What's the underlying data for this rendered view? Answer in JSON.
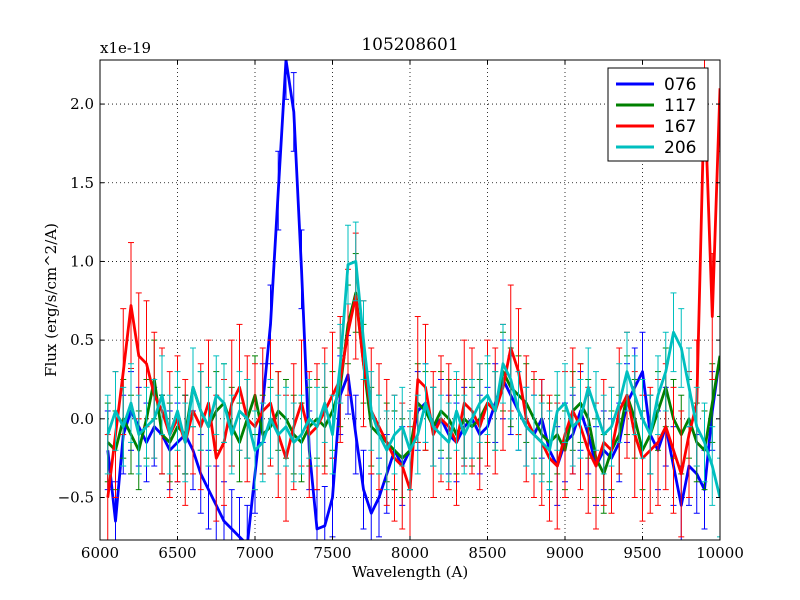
{
  "chart_data": {
    "type": "line",
    "title": "105208601",
    "xlabel": "Wavelength (A)",
    "ylabel": "Flux (erg/s/cm^2/A)",
    "offset_label": "x1e-19",
    "xlim": [
      6000,
      10000
    ],
    "ylim": [
      -0.77,
      2.28
    ],
    "grid": true,
    "legend_position": "top-right",
    "x_ticks": [
      6000,
      6500,
      7000,
      7500,
      8000,
      8500,
      9000,
      9500,
      10000
    ],
    "x_tick_labels": [
      "6000",
      "6500",
      "7000",
      "7500",
      "8000",
      "8500",
      "9000",
      "9500",
      "10000"
    ],
    "y_ticks": [
      -0.5,
      0.0,
      0.5,
      1.0,
      1.5,
      2.0
    ],
    "y_tick_labels": [
      "−0.5",
      "0.0",
      "0.5",
      "1.0",
      "1.5",
      "2.0"
    ],
    "series": [
      {
        "name": "076",
        "color": "#0000ff",
        "x": [
          6050,
          6100,
          6150,
          6200,
          6250,
          6300,
          6350,
          6400,
          6450,
          6500,
          6550,
          6600,
          6650,
          6700,
          6750,
          6800,
          6850,
          6900,
          6950,
          7000,
          7050,
          7100,
          7150,
          7200,
          7250,
          7300,
          7350,
          7400,
          7450,
          7500,
          7550,
          7600,
          7650,
          7700,
          7750,
          7800,
          7850,
          7900,
          7950,
          8000,
          8050,
          8100,
          8150,
          8200,
          8250,
          8300,
          8350,
          8400,
          8450,
          8500,
          8550,
          8600,
          8650,
          8700,
          8750,
          8800,
          8850,
          8900,
          8950,
          9000,
          9050,
          9100,
          9150,
          9200,
          9250,
          9300,
          9350,
          9400,
          9450,
          9500,
          9550,
          9600,
          9650,
          9700,
          9750,
          9800,
          9850,
          9900,
          9950,
          10000
        ],
        "values": [
          -0.2,
          -0.65,
          -0.1,
          0.05,
          -0.05,
          -0.15,
          -0.05,
          -0.1,
          -0.2,
          -0.15,
          -0.1,
          -0.2,
          -0.35,
          -0.45,
          -0.55,
          -0.65,
          -0.7,
          -0.75,
          -0.8,
          -0.35,
          0.1,
          0.6,
          1.45,
          2.28,
          1.95,
          0.95,
          -0.2,
          -0.7,
          -0.68,
          -0.5,
          0.15,
          0.28,
          -0.1,
          -0.45,
          -0.6,
          -0.5,
          -0.35,
          -0.2,
          -0.3,
          -0.2,
          0.05,
          0.1,
          -0.05,
          0.0,
          -0.1,
          -0.15,
          -0.05,
          0.0,
          -0.1,
          -0.05,
          0.1,
          0.25,
          0.15,
          0.05,
          -0.05,
          -0.1,
          0.0,
          -0.2,
          -0.3,
          -0.15,
          -0.1,
          0.05,
          -0.1,
          -0.3,
          -0.2,
          -0.25,
          -0.15,
          0.1,
          0.2,
          0.3,
          -0.1,
          -0.2,
          -0.05,
          -0.3,
          -0.55,
          -0.3,
          -0.35,
          -0.45,
          0.05,
          0.4
        ],
        "err": 0.25
      },
      {
        "name": "117",
        "color": "#008000",
        "x": [
          6050,
          6100,
          6150,
          6200,
          6250,
          6300,
          6350,
          6400,
          6450,
          6500,
          6550,
          6600,
          6650,
          6700,
          6750,
          6800,
          6850,
          6900,
          6950,
          7000,
          7050,
          7100,
          7150,
          7200,
          7250,
          7300,
          7350,
          7400,
          7450,
          7500,
          7550,
          7600,
          7650,
          7700,
          7750,
          7800,
          7850,
          7900,
          7950,
          8000,
          8050,
          8100,
          8150,
          8200,
          8250,
          8300,
          8350,
          8400,
          8450,
          8500,
          8550,
          8600,
          8650,
          8700,
          8750,
          8800,
          8850,
          8900,
          8950,
          9000,
          9050,
          9100,
          9150,
          9200,
          9250,
          9300,
          9350,
          9400,
          9450,
          9500,
          9550,
          9600,
          9650,
          9700,
          9750,
          9800,
          9850,
          9900,
          9950,
          10000
        ],
        "values": [
          -0.15,
          -0.2,
          0.0,
          -0.1,
          -0.2,
          0.0,
          0.25,
          -0.1,
          -0.15,
          -0.05,
          -0.1,
          0.2,
          0.05,
          -0.05,
          0.05,
          0.1,
          -0.05,
          -0.15,
          0.0,
          0.15,
          -0.1,
          -0.05,
          0.05,
          0.0,
          -0.1,
          -0.15,
          -0.05,
          0.0,
          -0.05,
          0.05,
          0.2,
          0.6,
          0.8,
          0.35,
          -0.05,
          -0.1,
          -0.15,
          -0.2,
          -0.25,
          -0.2,
          0.1,
          0.05,
          -0.05,
          0.05,
          0.0,
          -0.1,
          0.0,
          -0.05,
          0.0,
          0.1,
          0.05,
          0.3,
          0.2,
          0.15,
          0.1,
          0.0,
          -0.1,
          -0.15,
          -0.1,
          -0.2,
          0.05,
          0.1,
          0.0,
          -0.25,
          -0.35,
          -0.2,
          -0.1,
          0.15,
          0.0,
          -0.2,
          -0.1,
          0.05,
          0.2,
          0.0,
          -0.1,
          0.0,
          -0.15,
          -0.2,
          0.1,
          0.4
        ],
        "err": 0.25
      },
      {
        "name": "167",
        "color": "#ff0000",
        "x": [
          6050,
          6100,
          6150,
          6200,
          6250,
          6300,
          6350,
          6400,
          6450,
          6500,
          6550,
          6600,
          6650,
          6700,
          6750,
          6800,
          6850,
          6900,
          6950,
          7000,
          7050,
          7100,
          7150,
          7200,
          7250,
          7300,
          7350,
          7400,
          7450,
          7500,
          7550,
          7600,
          7650,
          7700,
          7750,
          7800,
          7850,
          7900,
          7950,
          8000,
          8050,
          8100,
          8150,
          8200,
          8250,
          8300,
          8350,
          8400,
          8450,
          8500,
          8550,
          8600,
          8650,
          8700,
          8750,
          8800,
          8850,
          8900,
          8950,
          9000,
          9050,
          9100,
          9150,
          9200,
          9250,
          9300,
          9350,
          9400,
          9450,
          9500,
          9550,
          9600,
          9650,
          9700,
          9750,
          9800,
          9850,
          9900,
          9950,
          10000
        ],
        "values": [
          -0.5,
          -0.1,
          0.3,
          0.72,
          0.4,
          0.35,
          0.15,
          0.05,
          -0.1,
          0.0,
          -0.15,
          0.05,
          -0.05,
          0.1,
          -0.25,
          -0.15,
          0.1,
          0.2,
          0.0,
          -0.05,
          0.05,
          0.1,
          -0.1,
          -0.25,
          -0.05,
          0.1,
          -0.1,
          -0.05,
          0.05,
          0.15,
          0.25,
          0.55,
          0.78,
          0.35,
          0.05,
          -0.05,
          -0.15,
          -0.25,
          -0.3,
          -0.45,
          0.25,
          0.2,
          -0.1,
          0.0,
          -0.05,
          -0.15,
          0.1,
          0.05,
          -0.05,
          0.1,
          0.05,
          0.2,
          0.45,
          0.3,
          0.0,
          -0.1,
          -0.15,
          -0.25,
          -0.3,
          -0.1,
          0.05,
          -0.05,
          -0.2,
          -0.3,
          -0.15,
          -0.2,
          0.05,
          0.15,
          -0.1,
          -0.25,
          -0.2,
          -0.15,
          -0.05,
          -0.2,
          -0.35,
          -0.1,
          0.1,
          2.08,
          0.65,
          2.1
        ],
        "err": 0.4
      },
      {
        "name": "206",
        "color": "#00bfbf",
        "x": [
          6050,
          6100,
          6150,
          6200,
          6250,
          6300,
          6350,
          6400,
          6450,
          6500,
          6550,
          6600,
          6650,
          6700,
          6750,
          6800,
          6850,
          6900,
          6950,
          7000,
          7050,
          7100,
          7150,
          7200,
          7250,
          7300,
          7350,
          7400,
          7450,
          7500,
          7550,
          7600,
          7650,
          7700,
          7750,
          7800,
          7850,
          7900,
          7950,
          8000,
          8050,
          8100,
          8150,
          8200,
          8250,
          8300,
          8350,
          8400,
          8450,
          8500,
          8550,
          8600,
          8650,
          8700,
          8750,
          8800,
          8850,
          8900,
          8950,
          9000,
          9050,
          9100,
          9150,
          9200,
          9250,
          9300,
          9350,
          9400,
          9450,
          9500,
          9550,
          9600,
          9650,
          9700,
          9750,
          9800,
          9850,
          9900,
          9950,
          10000
        ],
        "values": [
          -0.1,
          0.05,
          -0.05,
          0.1,
          -0.1,
          -0.05,
          0.0,
          0.15,
          -0.1,
          0.05,
          -0.15,
          0.2,
          0.05,
          -0.05,
          0.15,
          0.1,
          -0.1,
          0.05,
          0.0,
          -0.2,
          -0.15,
          0.0,
          -0.1,
          -0.05,
          -0.15,
          -0.1,
          0.0,
          -0.05,
          0.1,
          -0.1,
          0.35,
          0.98,
          1.0,
          0.5,
          0.05,
          -0.1,
          -0.2,
          -0.1,
          -0.05,
          -0.2,
          -0.1,
          0.1,
          -0.05,
          -0.1,
          -0.15,
          0.05,
          -0.1,
          0.0,
          0.1,
          0.15,
          0.05,
          0.35,
          0.25,
          0.05,
          -0.05,
          -0.1,
          -0.15,
          -0.2,
          0.05,
          0.1,
          -0.05,
          0.0,
          0.2,
          0.05,
          -0.1,
          -0.05,
          0.1,
          0.3,
          0.15,
          0.0,
          -0.1,
          0.15,
          0.3,
          0.55,
          0.45,
          0.2,
          -0.05,
          -0.15,
          -0.3,
          -0.5
        ],
        "err": 0.25
      }
    ]
  }
}
